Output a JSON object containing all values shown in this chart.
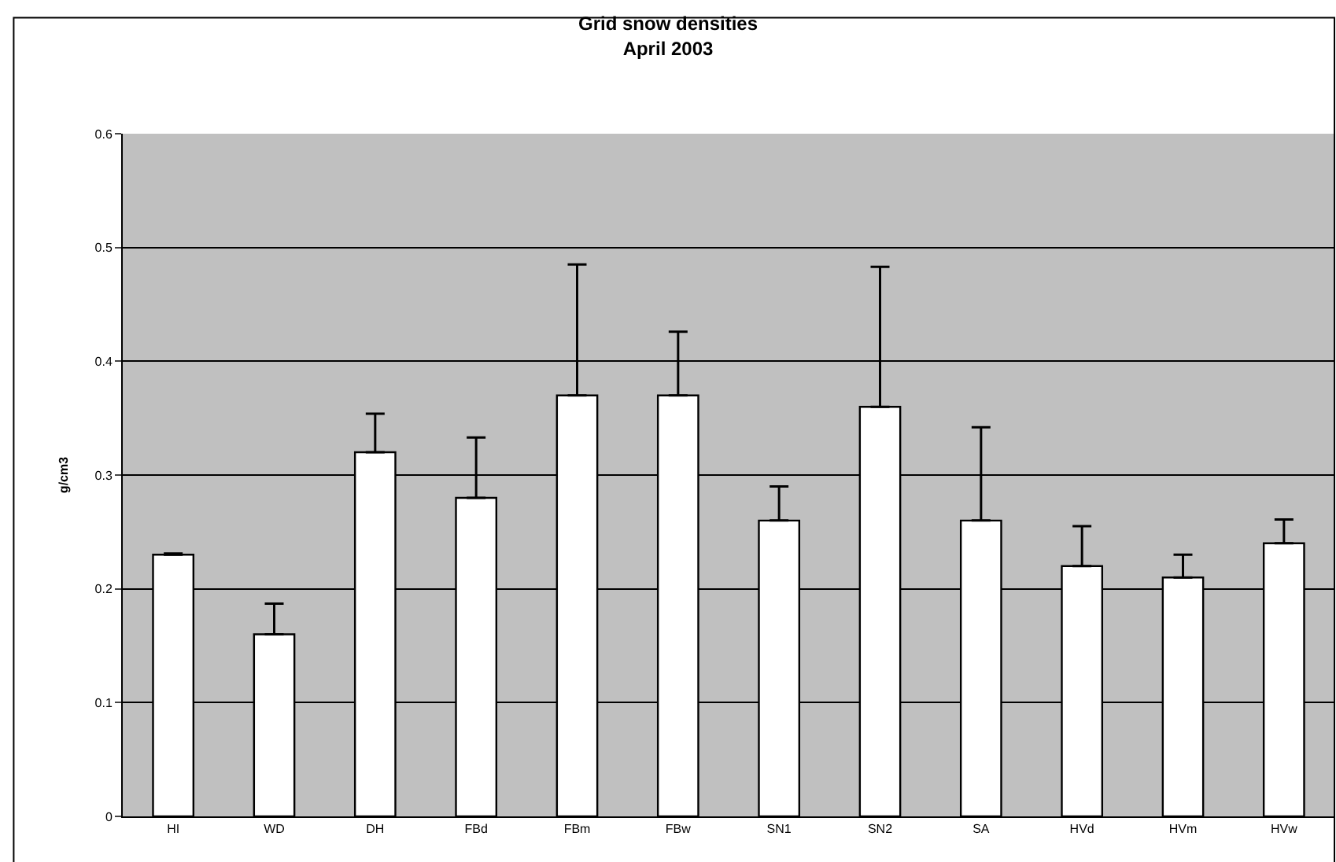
{
  "chart_data": {
    "type": "bar",
    "title": "Grid snow densities\nApril 2003",
    "ylabel": "g/cm3",
    "categories": [
      "HI",
      "WD",
      "DH",
      "FBd",
      "FBm",
      "FBw",
      "SN1",
      "SN2",
      "SA",
      "HVd",
      "HVm",
      "HVw"
    ],
    "values": [
      0.23,
      0.16,
      0.32,
      0.28,
      0.37,
      0.37,
      0.26,
      0.36,
      0.26,
      0.22,
      0.21,
      0.24
    ],
    "errors": [
      [
        0.23,
        0.231
      ],
      [
        0.16,
        0.187
      ],
      [
        0.32,
        0.354
      ],
      [
        0.28,
        0.333
      ],
      [
        0.37,
        0.485
      ],
      [
        0.37,
        0.426
      ],
      [
        0.26,
        0.29
      ],
      [
        0.36,
        0.483
      ],
      [
        0.26,
        0.342
      ],
      [
        0.22,
        0.255
      ],
      [
        0.21,
        0.23
      ],
      [
        0.24,
        0.261
      ]
    ],
    "color": "#ffffff",
    "ylim": [
      0,
      0.6
    ],
    "yticks": [
      0,
      0.1,
      0.2,
      0.3,
      0.4,
      0.5,
      0.6
    ],
    "grid": "y"
  }
}
